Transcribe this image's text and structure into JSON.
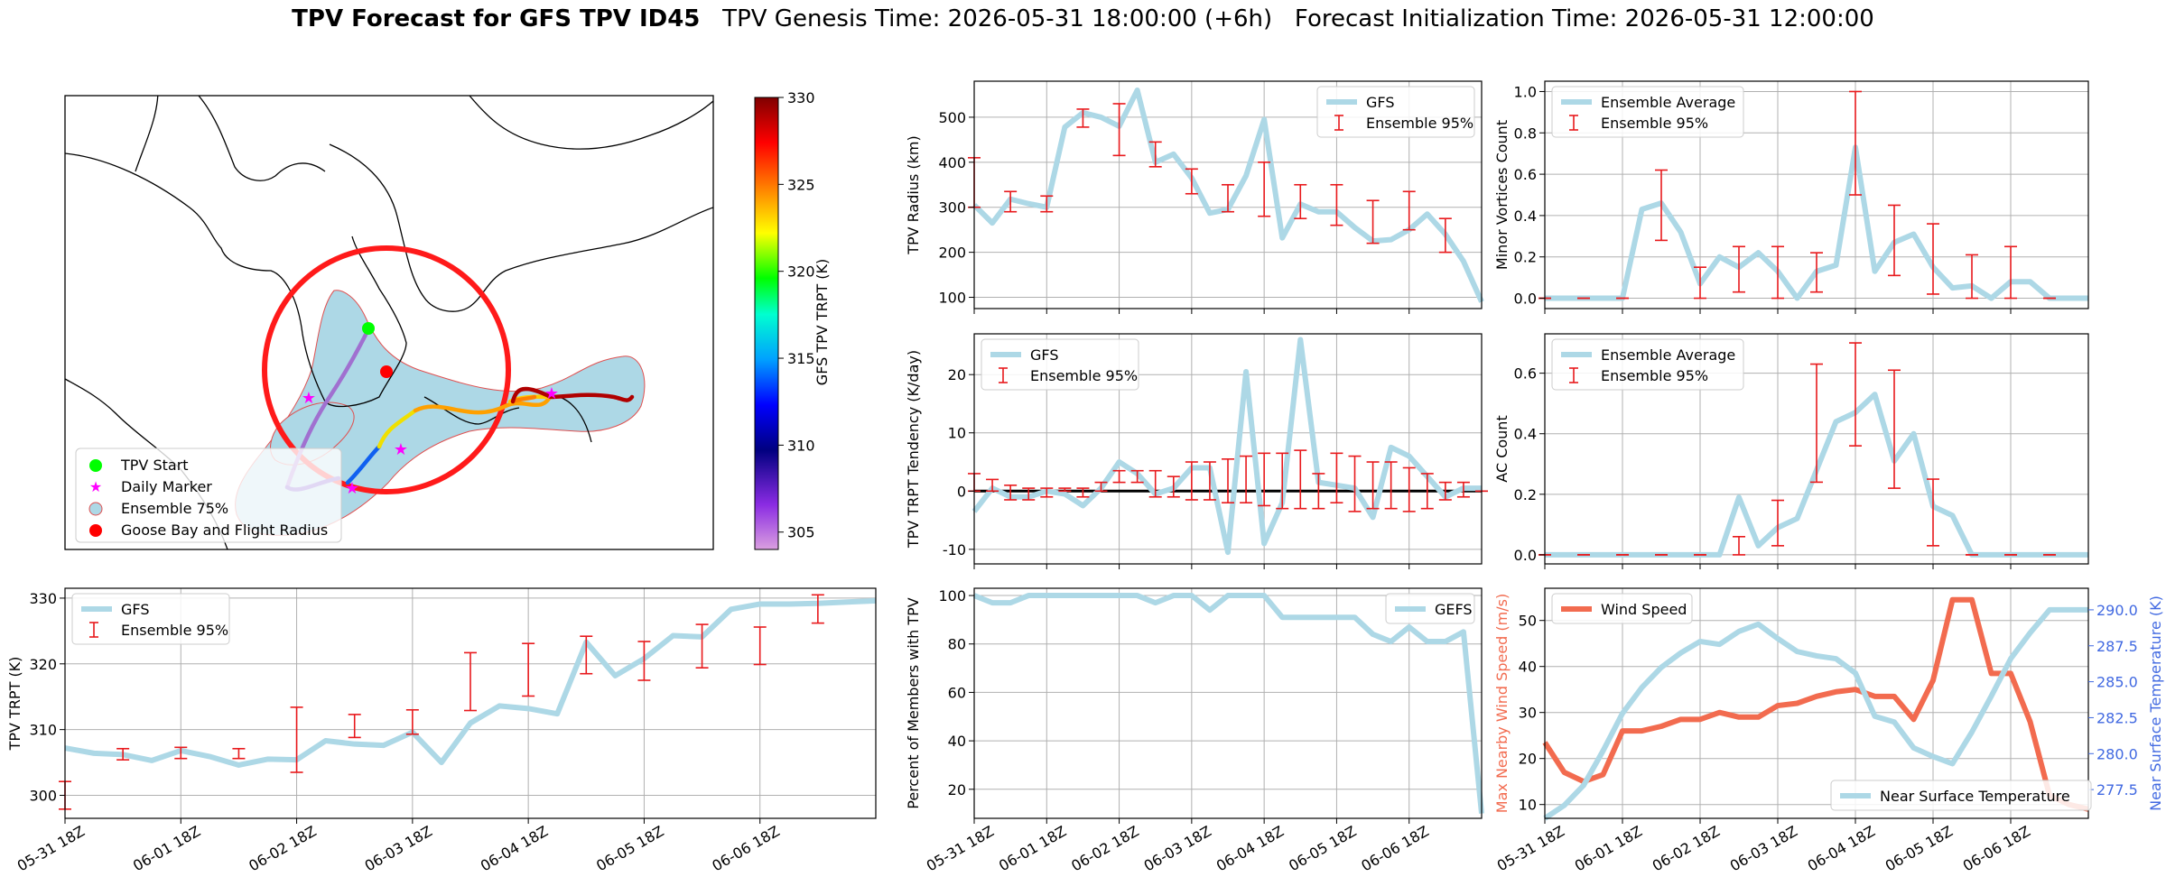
{
  "figure": {
    "title_bold": "TPV Forecast for GFS TPV ID45",
    "title_rest": "   TPV Genesis Time: 2026-05-31 18:00:00 (+6h)   Forecast Initialization Time: 2026-05-31 12:00:00"
  },
  "colors": {
    "gfs_line": "#add8e6",
    "error_bar": "#e8191c",
    "wind": "#f26b4f",
    "temperature_axis": "#4169e1",
    "grid": "#b0b0b0",
    "circle": "#ff0000",
    "start": "#00ff00",
    "daily": "#ff00ff"
  },
  "x_ticks": [
    "05-31 18Z",
    "06-01 18Z",
    "06-02 18Z",
    "06-03 18Z",
    "06-04 18Z",
    "06-05 18Z",
    "06-06 18Z"
  ],
  "map": {
    "colorbar_label": "GFS TPV TRPT (K)",
    "colorbar_ticks": [
      "330",
      "325",
      "320",
      "315",
      "310",
      "305"
    ],
    "colorbar_range": [
      304,
      330
    ],
    "legend": [
      "TPV Start",
      "Daily Marker",
      "Ensemble 75%",
      "Goose Bay and Flight Radius"
    ]
  },
  "chart_data": [
    {
      "id": "trpt",
      "type": "line",
      "title": "",
      "xlabel": "",
      "ylabel": "TPV TRPT (K)",
      "x": [
        0,
        1,
        2,
        3,
        4,
        5,
        6,
        7,
        8,
        9,
        10,
        11,
        12,
        13,
        14,
        15,
        16,
        17,
        18,
        19,
        20,
        21,
        22,
        23,
        24,
        25,
        26,
        27,
        28
      ],
      "ylim": [
        296.5,
        331.5
      ],
      "yticks": [
        300,
        310,
        320,
        330
      ],
      "grid": true,
      "legend_position": "upper left",
      "series": [
        {
          "name": "GFS",
          "values": [
            307.2,
            306.4,
            306.2,
            305.3,
            306.8,
            305.9,
            304.6,
            305.5,
            305.4,
            308.3,
            307.8,
            307.6,
            309.6,
            305.0,
            311.0,
            313.6,
            313.2,
            312.4,
            323.3,
            318.2,
            320.8,
            324.3,
            324.1,
            328.3,
            329.1,
            329.1,
            329.2,
            329.4,
            329.6
          ]
        },
        {
          "name": "Ensemble 95%",
          "kind": "errorbar",
          "x": [
            0,
            2,
            4,
            6,
            8,
            10,
            12,
            14,
            16,
            18,
            20,
            22,
            24,
            26
          ],
          "low": [
            297.9,
            305.4,
            305.6,
            305.6,
            303.5,
            308.8,
            309.3,
            312.9,
            315.1,
            318.5,
            317.5,
            319.4,
            319.9,
            326.2
          ],
          "high": [
            302.1,
            307.1,
            307.3,
            307.1,
            313.4,
            312.3,
            313.0,
            321.7,
            323.1,
            324.2,
            323.4,
            326.0,
            325.6,
            330.5
          ]
        }
      ]
    },
    {
      "id": "radius",
      "type": "line",
      "title": "",
      "xlabel": "",
      "ylabel": "TPV Radius (km)",
      "x": [
        0,
        1,
        2,
        3,
        4,
        5,
        6,
        7,
        8,
        9,
        10,
        11,
        12,
        13,
        14,
        15,
        16,
        17,
        18,
        19,
        20,
        21,
        22,
        23,
        24,
        25,
        26,
        27,
        28
      ],
      "ylim": [
        75,
        580
      ],
      "yticks": [
        100,
        200,
        300,
        400,
        500
      ],
      "grid": true,
      "legend_position": "upper right",
      "series": [
        {
          "name": "GFS",
          "values": [
            305,
            265,
            318,
            308,
            300,
            478,
            510,
            500,
            480,
            560,
            400,
            418,
            365,
            287,
            295,
            370,
            495,
            232,
            307,
            290,
            290,
            255,
            225,
            228,
            250,
            285,
            240,
            180,
            90
          ]
        },
        {
          "name": "Ensemble 95%",
          "kind": "errorbar",
          "x": [
            0,
            2,
            4,
            6,
            8,
            10,
            12,
            14,
            16,
            18,
            20,
            22,
            24,
            26
          ],
          "low": [
            300,
            290,
            290,
            478,
            415,
            390,
            330,
            290,
            280,
            275,
            260,
            220,
            250,
            200
          ],
          "high": [
            410,
            335,
            325,
            518,
            530,
            445,
            385,
            350,
            400,
            350,
            350,
            315,
            335,
            275
          ]
        }
      ]
    },
    {
      "id": "minor",
      "type": "line",
      "title": "",
      "xlabel": "",
      "ylabel": "Minor Vortices Count",
      "x": [
        0,
        1,
        2,
        3,
        4,
        5,
        6,
        7,
        8,
        9,
        10,
        11,
        12,
        13,
        14,
        15,
        16,
        17,
        18,
        19,
        20,
        21,
        22,
        23,
        24,
        25,
        26,
        27,
        28
      ],
      "ylim": [
        -0.05,
        1.05
      ],
      "yticks": [
        0.0,
        0.2,
        0.4,
        0.6,
        0.8,
        1.0
      ],
      "grid": true,
      "legend_position": "upper left",
      "series": [
        {
          "name": "Ensemble Average",
          "values": [
            0,
            0,
            0,
            0,
            0,
            0.43,
            0.46,
            0.32,
            0.07,
            0.2,
            0.15,
            0.22,
            0.13,
            0,
            0.13,
            0.16,
            0.73,
            0.13,
            0.27,
            0.31,
            0.15,
            0.05,
            0.06,
            0,
            0.08,
            0.08,
            0,
            0,
            0
          ]
        },
        {
          "name": "Ensemble 95%",
          "kind": "errorbar",
          "x": [
            0,
            2,
            4,
            6,
            8,
            10,
            12,
            14,
            16,
            18,
            20,
            22,
            24,
            26
          ],
          "low": [
            0,
            0,
            0,
            0.28,
            0,
            0.03,
            0,
            0.03,
            0.5,
            0.11,
            0.02,
            0,
            0,
            0
          ],
          "high": [
            0,
            0,
            0,
            0.62,
            0.15,
            0.25,
            0.25,
            0.22,
            1.0,
            0.45,
            0.36,
            0.21,
            0.25,
            0
          ]
        }
      ]
    },
    {
      "id": "tendency",
      "type": "line",
      "title": "",
      "xlabel": "",
      "ylabel": "TPV TRPT Tendency (K/day)",
      "x": [
        0,
        1,
        2,
        3,
        4,
        5,
        6,
        7,
        8,
        9,
        10,
        11,
        12,
        13,
        14,
        15,
        16,
        17,
        18,
        19,
        20,
        21,
        22,
        23,
        24,
        25,
        26,
        27,
        28
      ],
      "ylim": [
        -12.5,
        27
      ],
      "yticks": [
        -10,
        0,
        10,
        20
      ],
      "zero_line": true,
      "grid": true,
      "legend_position": "upper left",
      "series": [
        {
          "name": "GFS",
          "values": [
            -3.5,
            0.5,
            -1.0,
            -1.0,
            0.0,
            -0.5,
            -2.5,
            0.5,
            5.0,
            3.0,
            -0.5,
            0.5,
            4.0,
            4.0,
            -10.5,
            20.5,
            -9.0,
            -2.0,
            26.0,
            1.5,
            1.0,
            0.5,
            -4.5,
            7.5,
            6.0,
            2.5,
            -1.0,
            0.5,
            0.5
          ]
        },
        {
          "name": "Ensemble 95%",
          "kind": "errorbar",
          "x": [
            0,
            1,
            2,
            3,
            4,
            5,
            6,
            7,
            8,
            9,
            10,
            11,
            12,
            13,
            14,
            15,
            16,
            17,
            18,
            19,
            20,
            21,
            22,
            23,
            24,
            25,
            26,
            27,
            28
          ],
          "low": [
            0,
            0,
            -1.5,
            -1.5,
            -1,
            0,
            -1,
            0,
            1.5,
            1.5,
            -1,
            -1,
            -1.5,
            -1.5,
            -2,
            -2,
            -2.5,
            -3,
            -3,
            -3,
            -2,
            -3.5,
            -3,
            -3,
            -3.5,
            -3,
            -1.5,
            -1,
            0
          ],
          "high": [
            3,
            2,
            1,
            0.5,
            0.5,
            0.5,
            0.5,
            1.5,
            3.5,
            3.5,
            3.5,
            2.5,
            5,
            5,
            5.5,
            6,
            6.5,
            6.5,
            7,
            3,
            6.5,
            6,
            5,
            5,
            4,
            3,
            1.5,
            1.5,
            0
          ]
        }
      ]
    },
    {
      "id": "ac",
      "type": "line",
      "title": "",
      "xlabel": "",
      "ylabel": "AC Count",
      "x": [
        0,
        1,
        2,
        3,
        4,
        5,
        6,
        7,
        8,
        9,
        10,
        11,
        12,
        13,
        14,
        15,
        16,
        17,
        18,
        19,
        20,
        21,
        22,
        23,
        24,
        25,
        26,
        27,
        28
      ],
      "ylim": [
        -0.03,
        0.73
      ],
      "yticks": [
        0.0,
        0.2,
        0.4,
        0.6
      ],
      "grid": true,
      "legend_position": "upper left",
      "series": [
        {
          "name": "Ensemble Average",
          "values": [
            0,
            0,
            0,
            0,
            0,
            0,
            0,
            0,
            0,
            0,
            0.19,
            0.03,
            0.09,
            0.12,
            0.28,
            0.44,
            0.47,
            0.53,
            0.31,
            0.4,
            0.16,
            0.13,
            0,
            0,
            0,
            0,
            0,
            0,
            0
          ]
        },
        {
          "name": "Ensemble 95%",
          "kind": "errorbar",
          "x": [
            0,
            2,
            4,
            6,
            8,
            10,
            12,
            14,
            16,
            18,
            20,
            22,
            24,
            26
          ],
          "low": [
            0,
            0,
            0,
            0,
            0,
            0,
            0.03,
            0.24,
            0.36,
            0.22,
            0.03,
            0,
            0,
            0
          ],
          "high": [
            0,
            0,
            0,
            0,
            0,
            0.06,
            0.18,
            0.63,
            0.7,
            0.61,
            0.25,
            0,
            0,
            0
          ]
        }
      ]
    },
    {
      "id": "members",
      "type": "line",
      "title": "",
      "xlabel": "",
      "ylabel": "Percent of Members with TPV",
      "x": [
        0,
        1,
        2,
        3,
        4,
        5,
        6,
        7,
        8,
        9,
        10,
        11,
        12,
        13,
        14,
        15,
        16,
        17,
        18,
        19,
        20,
        21,
        22,
        23,
        24,
        25,
        26,
        27,
        28
      ],
      "ylim": [
        8,
        103
      ],
      "yticks": [
        20,
        40,
        60,
        80,
        100
      ],
      "grid": true,
      "legend_position": "upper right",
      "series": [
        {
          "name": "GEFS",
          "values": [
            100,
            97,
            97,
            100,
            100,
            100,
            100,
            100,
            100,
            100,
            97,
            100,
            100,
            94,
            100,
            100,
            100,
            91,
            91,
            91,
            91,
            91,
            84,
            81,
            87,
            81,
            81,
            85,
            10
          ]
        }
      ]
    },
    {
      "id": "wind_temp",
      "type": "line",
      "title": "",
      "xlabel": "",
      "ylabel": "Max Nearby Wind Speed (m/s)",
      "ylabel_right": "Near Surface Temperature (K)",
      "x": [
        0,
        1,
        2,
        3,
        4,
        5,
        6,
        7,
        8,
        9,
        10,
        11,
        12,
        13,
        14,
        15,
        16,
        17,
        18,
        19,
        20,
        21,
        22,
        23,
        24,
        25,
        26,
        27,
        28
      ],
      "ylim": [
        7,
        57
      ],
      "yticks": [
        10,
        20,
        30,
        40,
        50
      ],
      "ylim_right": [
        275.5,
        291.5
      ],
      "yticks_right": [
        277.5,
        280.0,
        282.5,
        285.0,
        287.5,
        290.0
      ],
      "grid": true,
      "series": [
        {
          "name": "Wind Speed",
          "axis": "left",
          "values": [
            23.5,
            17,
            15,
            16.5,
            26,
            26,
            27,
            28.5,
            28.5,
            30,
            29,
            29,
            31.5,
            32,
            33.5,
            34.5,
            35,
            33.5,
            33.5,
            28.5,
            37,
            54.5,
            54.5,
            38.5,
            38.5,
            28,
            12,
            10,
            9
          ]
        },
        {
          "name": "Near Surface Temperature",
          "axis": "right",
          "values": [
            275.5,
            276.4,
            277.8,
            280.2,
            282.8,
            284.6,
            286.0,
            287.0,
            287.8,
            287.6,
            288.5,
            289.0,
            288.0,
            287.1,
            286.8,
            286.6,
            285.6,
            282.6,
            282.2,
            280.4,
            279.8,
            279.3,
            281.5,
            284.0,
            286.6,
            288.4,
            290.0,
            290.0,
            290.0
          ]
        }
      ]
    }
  ]
}
